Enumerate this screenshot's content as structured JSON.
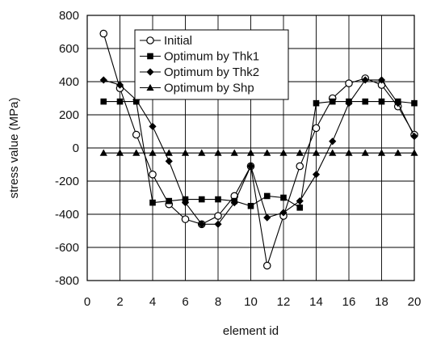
{
  "chart_data": {
    "type": "line",
    "title": "",
    "xlabel": "element id",
    "ylabel": "stress value (MPa)",
    "xlim": [
      0,
      20
    ],
    "ylim": [
      -800,
      800
    ],
    "x_ticks": [
      0,
      2,
      4,
      6,
      8,
      10,
      12,
      14,
      16,
      18,
      20
    ],
    "y_ticks": [
      -800,
      -600,
      -400,
      -200,
      0,
      200,
      400,
      600,
      800
    ],
    "grid": true,
    "legend_position": "top-center",
    "x": [
      1,
      2,
      3,
      4,
      5,
      6,
      7,
      8,
      9,
      10,
      11,
      12,
      13,
      14,
      15,
      16,
      17,
      18,
      19,
      20
    ],
    "series": [
      {
        "name": "Initial",
        "marker": "open-circle",
        "values": [
          690,
          360,
          80,
          -160,
          -340,
          -430,
          -460,
          -410,
          -290,
          -110,
          -710,
          -410,
          -110,
          120,
          300,
          390,
          420,
          380,
          250,
          80
        ]
      },
      {
        "name": "Optimum by Thk1",
        "marker": "filled-square",
        "values": [
          280,
          280,
          280,
          -330,
          -320,
          -310,
          -310,
          -310,
          -320,
          -350,
          -290,
          -300,
          -360,
          270,
          280,
          280,
          280,
          280,
          280,
          270
        ]
      },
      {
        "name": "Optimum by Thk2",
        "marker": "filled-diamond",
        "values": [
          410,
          380,
          290,
          130,
          -80,
          -330,
          -460,
          -460,
          -330,
          -110,
          -420,
          -390,
          -320,
          -160,
          40,
          270,
          410,
          410,
          270,
          70
        ]
      },
      {
        "name": "Optimum by Shp",
        "marker": "filled-triangle",
        "values": [
          -30,
          -30,
          -30,
          -30,
          -30,
          -30,
          -30,
          -30,
          -30,
          -30,
          -30,
          -30,
          -30,
          -30,
          -30,
          -30,
          -30,
          -30,
          -30,
          -30
        ]
      }
    ]
  }
}
